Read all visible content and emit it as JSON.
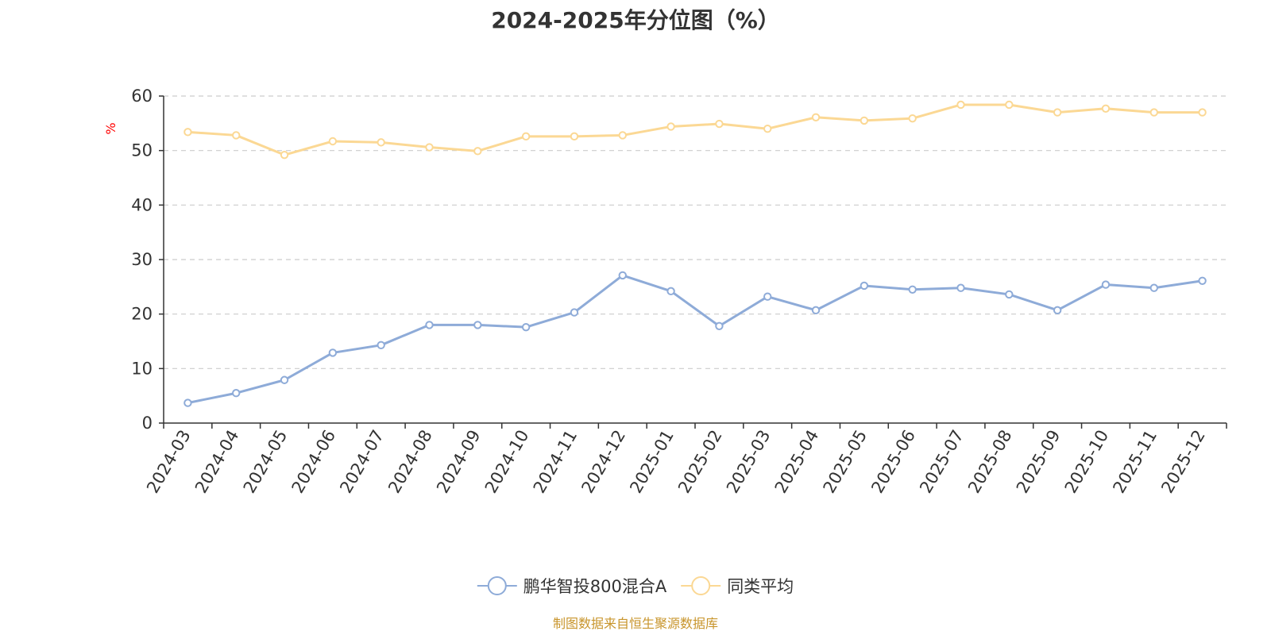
{
  "chart_data": {
    "type": "line",
    "title": "2024-2025年分位图（%）",
    "ylabel": "%",
    "xlabel": "",
    "ylim": [
      0,
      60
    ],
    "yticks": [
      0,
      10,
      20,
      30,
      40,
      50,
      60
    ],
    "grid": true,
    "legend_position": "bottom-center",
    "categories": [
      "2024-03",
      "2024-04",
      "2024-05",
      "2024-06",
      "2024-07",
      "2024-08",
      "2024-09",
      "2024-10",
      "2024-11",
      "2024-12",
      "2025-01",
      "2025-02",
      "2025-03",
      "2025-04",
      "2025-05",
      "2025-06",
      "2025-07",
      "2025-08",
      "2025-09",
      "2025-10",
      "2025-11",
      "2025-12"
    ],
    "series": [
      {
        "name": "鹏华智投800混合A",
        "color": "#8eabd8",
        "values": [
          3.7,
          5.5,
          7.9,
          12.9,
          14.3,
          18.0,
          18.0,
          17.6,
          20.3,
          27.1,
          24.2,
          17.8,
          23.2,
          20.7,
          25.2,
          24.5,
          24.8,
          23.6,
          20.7,
          25.4,
          24.8,
          26.1
        ]
      },
      {
        "name": "同类平均",
        "color": "#fbd894",
        "values": [
          53.4,
          52.8,
          49.2,
          51.7,
          51.5,
          50.6,
          49.9,
          52.6,
          52.6,
          52.8,
          54.4,
          54.9,
          54.0,
          56.1,
          55.5,
          55.9,
          58.4,
          58.4,
          57.0,
          57.7,
          57.0,
          57.0
        ]
      }
    ]
  },
  "footer": {
    "source": "制图数据来自恒生聚源数据库"
  }
}
